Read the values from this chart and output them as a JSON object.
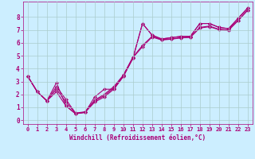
{
  "xlabel": "Windchill (Refroidissement éolien,°C)",
  "xlim": [
    0,
    23
  ],
  "ylim": [
    0,
    9
  ],
  "xticks": [
    0,
    1,
    2,
    3,
    4,
    5,
    6,
    7,
    8,
    9,
    10,
    11,
    12,
    13,
    14,
    15,
    16,
    17,
    18,
    19,
    20,
    21,
    22,
    23
  ],
  "yticks": [
    0,
    1,
    2,
    3,
    4,
    5,
    6,
    7,
    8
  ],
  "background_color": "#cceeff",
  "line_color": "#aa0077",
  "grid_color": "#aacccc",
  "line1_x": [
    0,
    1,
    2,
    3,
    4,
    5,
    6,
    7,
    8,
    9,
    10,
    11,
    12,
    13,
    14,
    15,
    16,
    17,
    18,
    19,
    20,
    21,
    22,
    23
  ],
  "line1_y": [
    3.4,
    2.2,
    1.5,
    2.2,
    1.1,
    0.5,
    0.6,
    1.4,
    1.8,
    2.4,
    3.4,
    4.8,
    7.5,
    6.6,
    6.3,
    6.4,
    6.5,
    6.5,
    7.5,
    7.5,
    7.2,
    7.1,
    7.9,
    8.7
  ],
  "line2_x": [
    0,
    1,
    2,
    3,
    4,
    5,
    6,
    7,
    8,
    9,
    10,
    11,
    12,
    13,
    14,
    15,
    16,
    17,
    18,
    19,
    20,
    21,
    22,
    23
  ],
  "line2_y": [
    3.4,
    2.2,
    1.5,
    2.6,
    1.6,
    0.55,
    0.65,
    1.55,
    2.0,
    2.6,
    3.5,
    4.9,
    5.8,
    6.5,
    6.25,
    6.3,
    6.4,
    6.45,
    7.2,
    7.3,
    7.05,
    7.0,
    7.75,
    8.55
  ],
  "line3_x": [
    0,
    1,
    2,
    3,
    4,
    5,
    6,
    7,
    8,
    9,
    10,
    11,
    12,
    13,
    14,
    15,
    16,
    17,
    18,
    19,
    20,
    21,
    22,
    23
  ],
  "line3_y": [
    3.4,
    2.2,
    1.5,
    2.4,
    1.4,
    0.52,
    0.62,
    1.5,
    1.9,
    2.5,
    3.45,
    4.85,
    5.7,
    6.45,
    6.22,
    6.28,
    6.38,
    6.42,
    7.15,
    7.25,
    7.02,
    6.97,
    7.72,
    8.52
  ],
  "line4_x": [
    0,
    1,
    2,
    3,
    4,
    5,
    6,
    7,
    8,
    9,
    10,
    11,
    12,
    13,
    14,
    15,
    16,
    17,
    18,
    19,
    20,
    21,
    22,
    23
  ],
  "line4_y": [
    3.4,
    2.2,
    1.5,
    2.9,
    1.1,
    0.5,
    0.6,
    1.8,
    2.4,
    2.4,
    3.4,
    4.8,
    7.5,
    6.6,
    6.3,
    6.4,
    6.5,
    6.5,
    7.5,
    7.5,
    7.2,
    7.1,
    7.9,
    8.7
  ],
  "markersize": 2.5,
  "linewidth": 0.8
}
